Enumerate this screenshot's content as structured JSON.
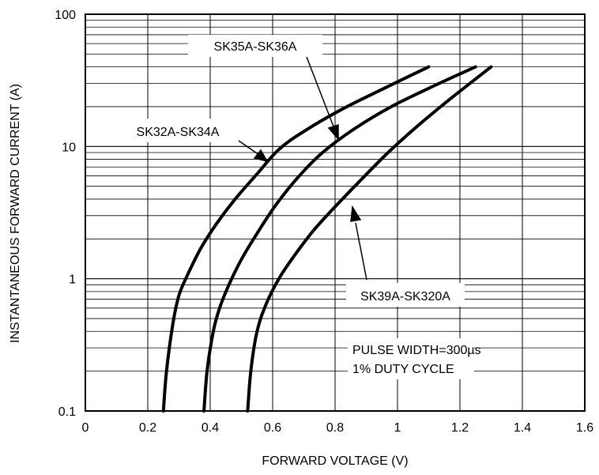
{
  "chart_data": {
    "type": "line",
    "xlabel": "FORWARD VOLTAGE (V)",
    "ylabel": "INSTANTANEOUS FORWARD CURRENT (A)",
    "xlim": [
      0,
      1.6
    ],
    "ylim": [
      0.1,
      100
    ],
    "y_scale": "log",
    "grid": true,
    "x_ticks": [
      "0",
      "0.2",
      "0.4",
      "0.6",
      "0.8",
      "1",
      "1.2",
      "1.4",
      "1.6"
    ],
    "y_ticks": [
      "0.1",
      "1",
      "10",
      "100"
    ],
    "series": [
      {
        "name": "SK32A-SK34A",
        "x": [
          0.25,
          0.26,
          0.28,
          0.3,
          0.33,
          0.37,
          0.42,
          0.48,
          0.55,
          0.62,
          0.7,
          0.82,
          0.95,
          1.1
        ],
        "y": [
          0.1,
          0.2,
          0.45,
          0.75,
          1.1,
          1.7,
          2.6,
          4.0,
          6.2,
          9.5,
          13,
          19,
          27,
          40
        ]
      },
      {
        "name": "SK35A-SK36A",
        "x": [
          0.38,
          0.39,
          0.41,
          0.43,
          0.46,
          0.5,
          0.55,
          0.61,
          0.68,
          0.76,
          0.86,
          0.98,
          1.12,
          1.25
        ],
        "y": [
          0.1,
          0.2,
          0.4,
          0.6,
          0.9,
          1.4,
          2.2,
          3.6,
          5.8,
          9.0,
          13.5,
          20,
          29,
          40
        ]
      },
      {
        "name": "SK39A-SK320A",
        "x": [
          0.52,
          0.53,
          0.55,
          0.58,
          0.62,
          0.67,
          0.73,
          0.8,
          0.88,
          0.97,
          1.06,
          1.16,
          1.3
        ],
        "y": [
          0.1,
          0.2,
          0.4,
          0.65,
          1.0,
          1.5,
          2.3,
          3.5,
          5.5,
          9.0,
          14,
          22,
          40
        ]
      }
    ],
    "annotations": [
      "SK35A-SK36A",
      "SK32A-SK34A",
      "SK39A-SK320A",
      "PULSE WIDTH=300µs",
      "1% DUTY CYCLE"
    ]
  }
}
